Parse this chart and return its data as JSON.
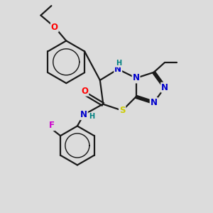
{
  "background_color": "#dcdcdc",
  "line_color": "#1a1a1a",
  "bond_width": 1.6,
  "atom_colors": {
    "O": "#ff0000",
    "N": "#0000cc",
    "S": "#cccc00",
    "F": "#cc00cc",
    "H": "#008080",
    "C": "#1a1a1a"
  },
  "font_size": 8.5,
  "figsize": [
    3.0,
    3.0
  ],
  "dpi": 100
}
